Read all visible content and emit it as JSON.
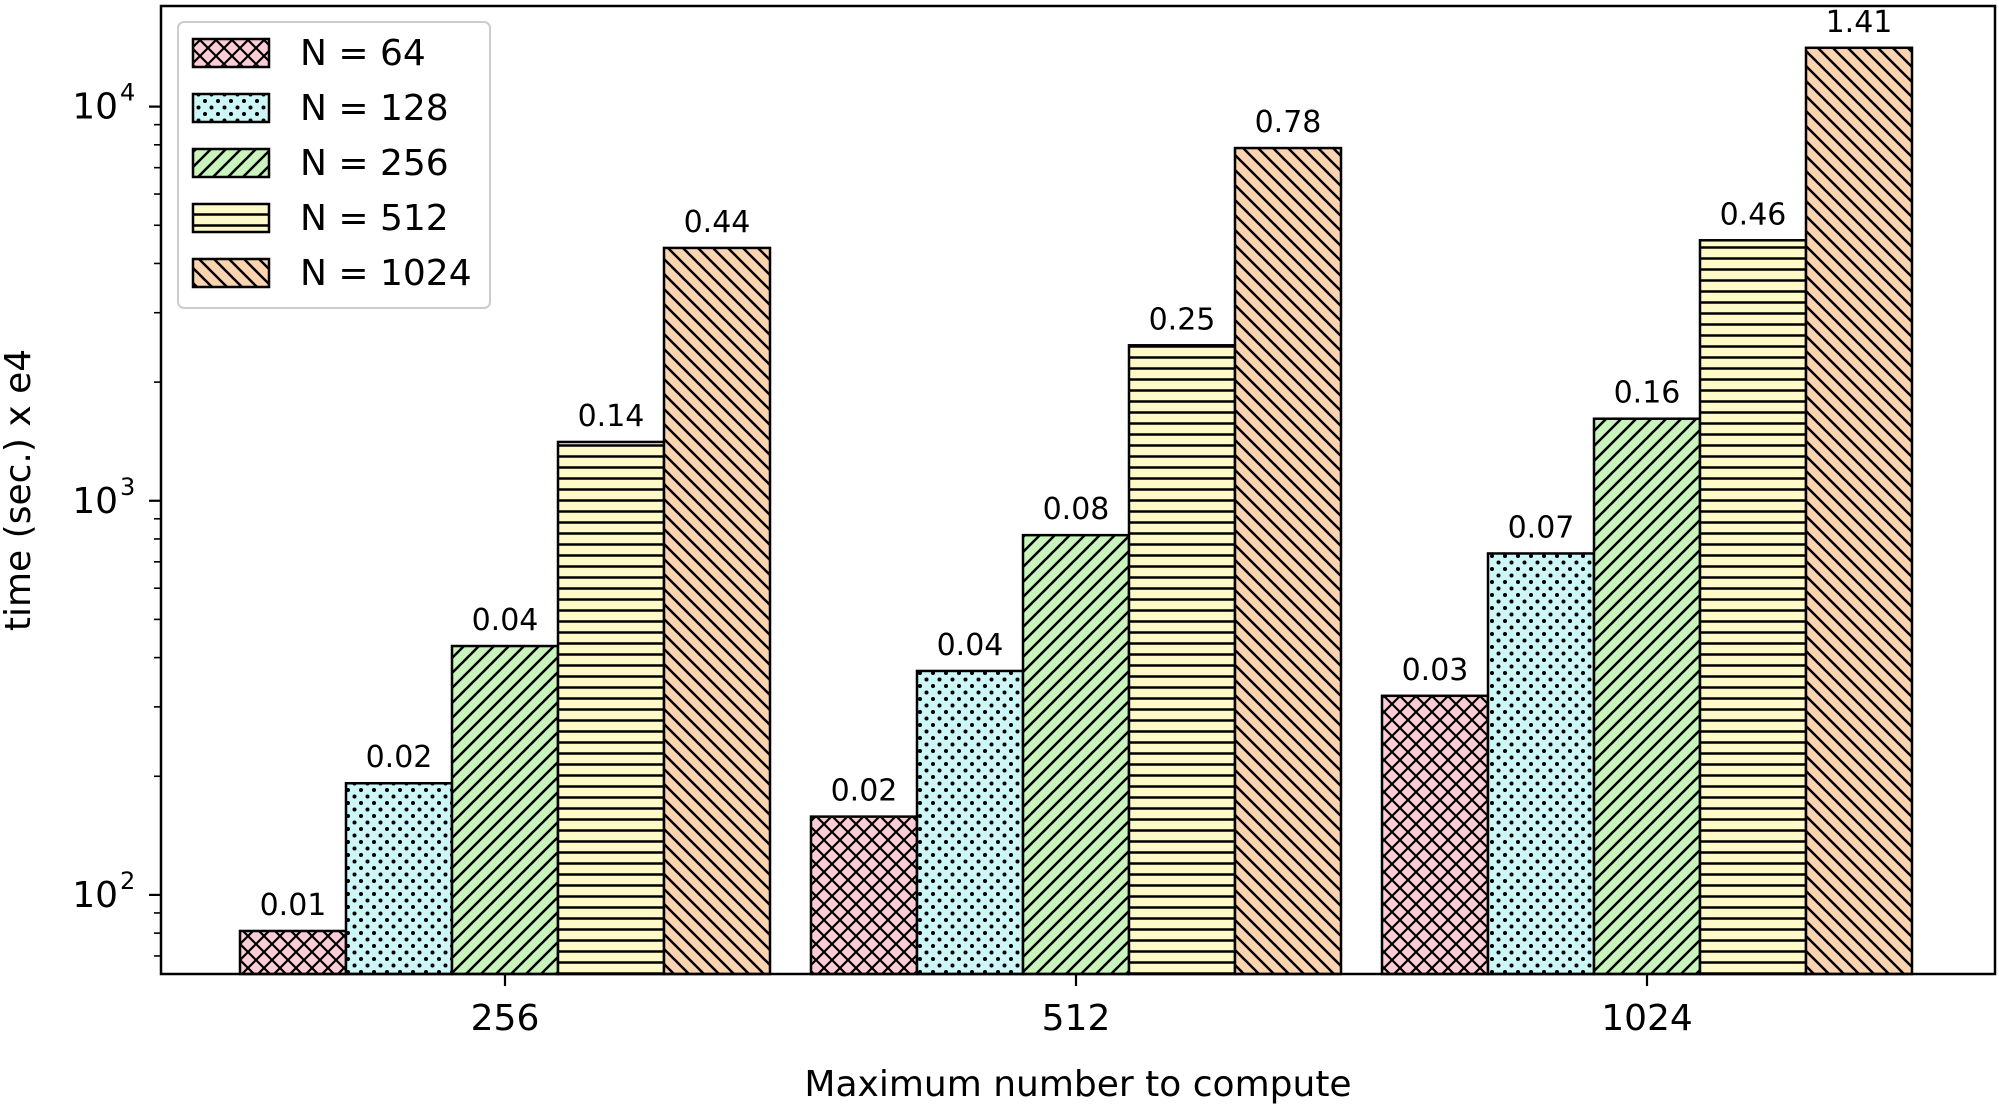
{
  "chart_data": {
    "type": "bar",
    "title": "",
    "xlabel": "Maximum number to compute",
    "ylabel": "time (sec.) x e4",
    "yscale": "log",
    "ylim": [
      63,
      18000
    ],
    "yticks": [
      100,
      1000,
      10000
    ],
    "ytick_labels": [
      {
        "base": "10",
        "exp": "2"
      },
      {
        "base": "10",
        "exp": "3"
      },
      {
        "base": "10",
        "exp": "4"
      }
    ],
    "categories": [
      "256",
      "512",
      "1024"
    ],
    "legend_position": "upper-left",
    "grid": false,
    "series": [
      {
        "name": "N = 64",
        "color": "#f9ccd6",
        "hatch": "crosshatch",
        "values": [
          81,
          158,
          320
        ],
        "labels": [
          "0.01",
          "0.02",
          "0.03"
        ]
      },
      {
        "name": "N = 128",
        "color": "#cdf6f6",
        "hatch": "dots",
        "values": [
          192,
          370,
          735
        ],
        "labels": [
          "0.02",
          "0.04",
          "0.07"
        ]
      },
      {
        "name": "N = 256",
        "color": "#c9f4bc",
        "hatch": "diagonal-up",
        "values": [
          428,
          818,
          1615
        ],
        "labels": [
          "0.04",
          "0.08",
          "0.16"
        ]
      },
      {
        "name": "N = 512",
        "color": "#fdfac8",
        "hatch": "horizontal",
        "values": [
          1410,
          2480,
          4580
        ],
        "labels": [
          "0.14",
          "0.25",
          "0.46"
        ]
      },
      {
        "name": "N = 1024",
        "color": "#fdd4b0",
        "hatch": "diagonal-down",
        "values": [
          4380,
          7850,
          14100
        ],
        "labels": [
          "0.44",
          "0.78",
          "1.41"
        ]
      }
    ]
  }
}
